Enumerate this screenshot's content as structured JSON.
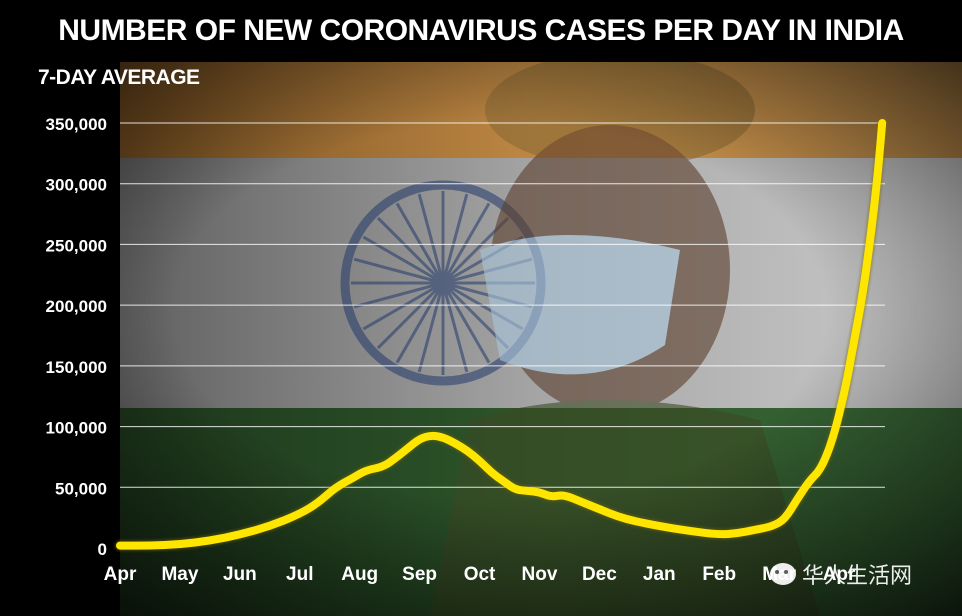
{
  "title": "NUMBER OF NEW CORONAVIRUS CASES PER DAY IN INDIA",
  "subtitle": "7-DAY AVERAGE",
  "watermark": "华人生活网",
  "colors": {
    "line": "#ffe600",
    "grid": "#ffffff",
    "text": "#ffffff",
    "saffron": "#c4843a",
    "green": "#2c5a2a"
  },
  "chart_data": {
    "type": "line",
    "title": "NUMBER OF NEW CORONAVIRUS CASES PER DAY IN INDIA",
    "subtitle": "7-DAY AVERAGE",
    "xlabel": "",
    "ylabel": "",
    "ylim": [
      0,
      350000
    ],
    "yticks": [
      0,
      50000,
      100000,
      150000,
      200000,
      250000,
      300000,
      350000
    ],
    "ytick_labels": [
      "0",
      "50,000",
      "100,000",
      "150,000",
      "200,000",
      "250,000",
      "300,000",
      "350,000"
    ],
    "xlim": [
      0,
      12.8
    ],
    "xticks": [
      0,
      1,
      2,
      3,
      4,
      5,
      6,
      7,
      8,
      9,
      10,
      11,
      12
    ],
    "xtick_labels": [
      "Apr",
      "May",
      "Jun",
      "Jul",
      "Aug",
      "Sep",
      "Oct",
      "Nov",
      "Dec",
      "Jan",
      "Feb",
      "Mar",
      "Apr"
    ],
    "grid": true,
    "series": [
      {
        "x": [
          0,
          0.5,
          1,
          1.5,
          2,
          2.5,
          3,
          3.3,
          3.6,
          3.9,
          4.1,
          4.4,
          4.6,
          4.8,
          5.0,
          5.2,
          5.4,
          5.6,
          5.8,
          6.0,
          6.2,
          6.4,
          6.6,
          6.8,
          7.0,
          7.2,
          7.4,
          7.7,
          8.0,
          8.3,
          8.6,
          9.0,
          9.5,
          10.0,
          10.3,
          10.6,
          10.9,
          11.1,
          11.3,
          11.5,
          11.7,
          11.9,
          12.1,
          12.25,
          12.4,
          12.55,
          12.65,
          12.72
        ],
        "values": [
          2000,
          2000,
          3000,
          6000,
          11000,
          18000,
          28000,
          37000,
          50000,
          58000,
          64000,
          67000,
          74000,
          82000,
          90000,
          93000,
          91000,
          86000,
          80000,
          72000,
          62000,
          55000,
          48000,
          47000,
          46000,
          42000,
          44000,
          38000,
          32000,
          26000,
          22000,
          18000,
          14000,
          11000,
          12000,
          15000,
          18000,
          24000,
          40000,
          55000,
          65000,
          90000,
          130000,
          170000,
          210000,
          265000,
          310000,
          350000
        ]
      }
    ]
  }
}
